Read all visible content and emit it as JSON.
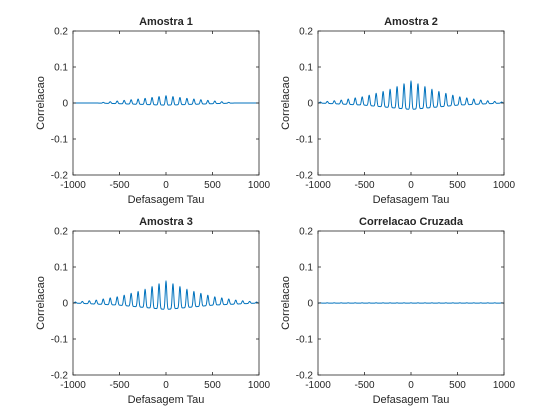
{
  "figure": {
    "background": "#ffffff"
  },
  "chart_data": [
    {
      "type": "line",
      "title": "Amostra 1",
      "xlabel": "Defasagem Tau",
      "ylabel": "Correlacao",
      "xlim": [
        -1000,
        1000
      ],
      "ylim": [
        -0.2,
        0.2
      ],
      "xticks": [
        -1000,
        -500,
        0,
        500,
        1000
      ],
      "xtick_labels": [
        "-1000",
        "-500",
        "0",
        "500",
        "1000"
      ],
      "yticks": [
        -0.2,
        -0.1,
        0,
        0.1,
        0.2
      ],
      "ytick_labels": [
        "-0.2",
        "-0.1",
        "0",
        "0.1",
        "0.2"
      ],
      "grid": false,
      "color": "#0072bd",
      "series": [
        {
          "note_shape": "symmetric oscillation centered at lag 0, peak spacing ~75",
          "peak_envelope": {
            "x": [
              -1000,
              -750,
              -500,
              -250,
              0,
              250,
              500,
              750,
              1000
            ],
            "y": [
              0.0,
              0.0,
              0.006,
              0.012,
              0.02,
              0.012,
              0.006,
              0.0,
              0.0
            ]
          },
          "trough_envelope": {
            "x": [
              -1000,
              -750,
              -500,
              -250,
              0,
              250,
              500,
              750,
              1000
            ],
            "y": [
              0.0,
              0.0,
              -0.002,
              -0.004,
              -0.006,
              -0.004,
              -0.002,
              0.0,
              0.0
            ]
          },
          "period": 75
        }
      ]
    },
    {
      "type": "line",
      "title": "Amostra 2",
      "xlabel": "Defasagem Tau",
      "ylabel": "Correlacao",
      "xlim": [
        -1000,
        1000
      ],
      "ylim": [
        -0.2,
        0.2
      ],
      "xticks": [
        -1000,
        -500,
        0,
        500,
        1000
      ],
      "xtick_labels": [
        "-1000",
        "-500",
        "0",
        "500",
        "1000"
      ],
      "yticks": [
        -0.2,
        -0.1,
        0,
        0.1,
        0.2
      ],
      "ytick_labels": [
        "-0.2",
        "-0.1",
        "0",
        "0.1",
        "0.2"
      ],
      "grid": false,
      "color": "#0072bd",
      "series": [
        {
          "peak_envelope": {
            "x": [
              -1000,
              -750,
              -500,
              -250,
              0,
              250,
              500,
              750,
              1000
            ],
            "y": [
              0.002,
              0.008,
              0.018,
              0.035,
              0.06,
              0.035,
              0.018,
              0.008,
              0.002
            ]
          },
          "trough_envelope": {
            "x": [
              -1000,
              -750,
              -500,
              -250,
              0,
              250,
              500,
              750,
              1000
            ],
            "y": [
              0.0,
              -0.003,
              -0.006,
              -0.012,
              -0.018,
              -0.012,
              -0.006,
              -0.003,
              0.0
            ]
          },
          "period": 75
        }
      ]
    },
    {
      "type": "line",
      "title": "Amostra 3",
      "xlabel": "Defasagem Tau",
      "ylabel": "Correlacao",
      "xlim": [
        -1000,
        1000
      ],
      "ylim": [
        -0.2,
        0.2
      ],
      "xticks": [
        -1000,
        -500,
        0,
        500,
        1000
      ],
      "xtick_labels": [
        "-1000",
        "-500",
        "0",
        "500",
        "1000"
      ],
      "yticks": [
        -0.2,
        -0.1,
        0,
        0.1,
        0.2
      ],
      "ytick_labels": [
        "-0.2",
        "-0.1",
        "0",
        "0.1",
        "0.2"
      ],
      "grid": false,
      "color": "#0072bd",
      "series": [
        {
          "peak_envelope": {
            "x": [
              -1000,
              -750,
              -500,
              -250,
              0,
              250,
              500,
              750,
              1000
            ],
            "y": [
              0.002,
              0.008,
              0.018,
              0.035,
              0.06,
              0.035,
              0.018,
              0.008,
              0.002
            ]
          },
          "trough_envelope": {
            "x": [
              -1000,
              -750,
              -500,
              -250,
              0,
              250,
              500,
              750,
              1000
            ],
            "y": [
              0.0,
              -0.003,
              -0.006,
              -0.012,
              -0.018,
              -0.012,
              -0.006,
              -0.003,
              0.0
            ]
          },
          "period": 75
        }
      ]
    },
    {
      "type": "line",
      "title": "Correlacao Cruzada",
      "xlabel": "Defasagem Tau",
      "ylabel": "Correlacao",
      "xlim": [
        -1000,
        1000
      ],
      "ylim": [
        -0.2,
        0.2
      ],
      "xticks": [
        -1000,
        -500,
        0,
        500,
        1000
      ],
      "xtick_labels": [
        "-1000",
        "-500",
        "0",
        "500",
        "1000"
      ],
      "yticks": [
        -0.2,
        -0.1,
        0,
        0.1,
        0.2
      ],
      "ytick_labels": [
        "-0.2",
        "-0.1",
        "0",
        "0.1",
        "0.2"
      ],
      "grid": false,
      "color": "#0072bd",
      "series": [
        {
          "peak_envelope": {
            "x": [
              -1000,
              0,
              1000
            ],
            "y": [
              0.0005,
              0.0005,
              0.0005
            ]
          },
          "trough_envelope": {
            "x": [
              -1000,
              0,
              1000
            ],
            "y": [
              -0.0005,
              -0.0005,
              -0.0005
            ]
          },
          "period": 75
        }
      ]
    }
  ]
}
